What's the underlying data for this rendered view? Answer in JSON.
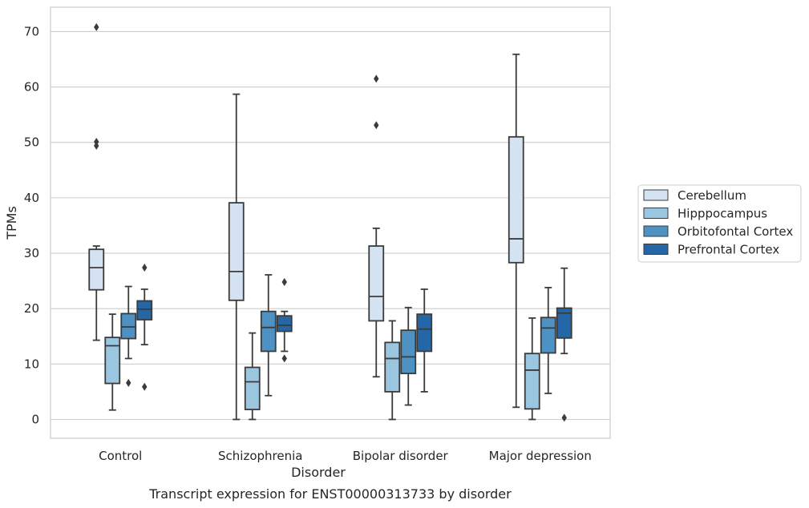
{
  "chart_data": {
    "type": "boxplot",
    "title": "",
    "caption": "Transcript expression for ENST00000313733 by disorder",
    "xlabel": "Disorder",
    "ylabel": "TPMs",
    "ylim": [
      -3.4,
      74.4
    ],
    "yticks": [
      0,
      10,
      20,
      30,
      40,
      50,
      60,
      70
    ],
    "grid": true,
    "legend_position": "right",
    "categories": [
      "Control",
      "Schizophrenia",
      "Bipolar disorder",
      "Major depression"
    ],
    "series": [
      {
        "name": "Cerebellum",
        "color": "#d4e2f1",
        "boxes": [
          {
            "whisker_low": 14.3,
            "q1": 23.4,
            "median": 27.4,
            "q3": 30.7,
            "whisker_high": 31.3,
            "outliers": [
              70.8,
              50.1,
              49.4
            ]
          },
          {
            "whisker_low": 0.0,
            "q1": 21.5,
            "median": 26.7,
            "q3": 39.1,
            "whisker_high": 58.7,
            "outliers": []
          },
          {
            "whisker_low": 7.7,
            "q1": 17.8,
            "median": 22.2,
            "q3": 31.3,
            "whisker_high": 34.5,
            "outliers": [
              61.5,
              53.1
            ]
          },
          {
            "whisker_low": 2.2,
            "q1": 28.3,
            "median": 32.6,
            "q3": 51.0,
            "whisker_high": 65.9,
            "outliers": []
          }
        ]
      },
      {
        "name": "Hipppocampus",
        "color": "#9ac6e0",
        "boxes": [
          {
            "whisker_low": 1.7,
            "q1": 6.5,
            "median": 13.3,
            "q3": 14.8,
            "whisker_high": 19.0,
            "outliers": []
          },
          {
            "whisker_low": 0.0,
            "q1": 1.8,
            "median": 6.8,
            "q3": 9.4,
            "whisker_high": 15.6,
            "outliers": []
          },
          {
            "whisker_low": 0.0,
            "q1": 5.0,
            "median": 11.0,
            "q3": 13.9,
            "whisker_high": 17.8,
            "outliers": []
          },
          {
            "whisker_low": 0.0,
            "q1": 1.9,
            "median": 8.9,
            "q3": 11.9,
            "whisker_high": 18.3,
            "outliers": []
          }
        ]
      },
      {
        "name": "Orbitofontal Cortex",
        "color": "#4d92c3",
        "boxes": [
          {
            "whisker_low": 11.0,
            "q1": 14.6,
            "median": 16.7,
            "q3": 19.1,
            "whisker_high": 24.0,
            "outliers": [
              6.6
            ]
          },
          {
            "whisker_low": 4.3,
            "q1": 12.3,
            "median": 16.6,
            "q3": 19.5,
            "whisker_high": 26.1,
            "outliers": []
          },
          {
            "whisker_low": 2.6,
            "q1": 8.3,
            "median": 11.3,
            "q3": 16.1,
            "whisker_high": 20.2,
            "outliers": []
          },
          {
            "whisker_low": 4.7,
            "q1": 12.0,
            "median": 16.5,
            "q3": 18.4,
            "whisker_high": 23.8,
            "outliers": []
          }
        ]
      },
      {
        "name": "Prefrontal Cortex",
        "color": "#2566a7",
        "boxes": [
          {
            "whisker_low": 13.5,
            "q1": 18.0,
            "median": 19.9,
            "q3": 21.4,
            "whisker_high": 23.5,
            "outliers": [
              27.4,
              5.9
            ]
          },
          {
            "whisker_low": 12.3,
            "q1": 15.9,
            "median": 17.0,
            "q3": 18.7,
            "whisker_high": 19.5,
            "outliers": [
              24.8,
              11.0
            ]
          },
          {
            "whisker_low": 5.0,
            "q1": 12.3,
            "median": 16.3,
            "q3": 19.0,
            "whisker_high": 23.5,
            "outliers": []
          },
          {
            "whisker_low": 11.9,
            "q1": 14.7,
            "median": 19.2,
            "q3": 20.1,
            "whisker_high": 27.3,
            "outliers": [
              0.3
            ]
          }
        ]
      }
    ]
  }
}
